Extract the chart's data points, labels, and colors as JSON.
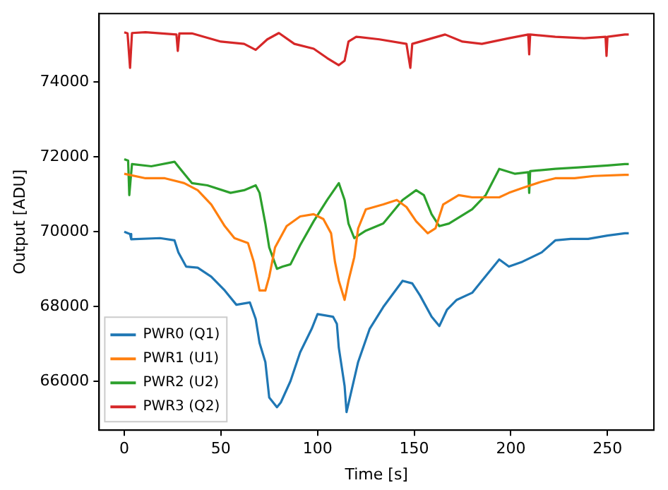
{
  "chart_data": {
    "type": "line",
    "xlabel": "Time [s]",
    "ylabel": "Output [ADU]",
    "xlim": [
      -13,
      274
    ],
    "ylim": [
      64700,
      75830
    ],
    "xticks": [
      0,
      50,
      100,
      150,
      200,
      250
    ],
    "yticks": [
      66000,
      68000,
      70000,
      72000,
      74000
    ],
    "grid": false,
    "legend": "bottom left",
    "marker": "none",
    "line_style": "solid",
    "series": [
      {
        "name": "PWR0 (Q1)",
        "color": "#1f77b4",
        "x": [
          0,
          3,
          3.6,
          18.5,
          26,
          28,
          32,
          38,
          45,
          52,
          58,
          65,
          68,
          70,
          73,
          75,
          79,
          81,
          86,
          91,
          97,
          100,
          108,
          110,
          111,
          114,
          115,
          117,
          121,
          127,
          134,
          144,
          149,
          153,
          159,
          163,
          167,
          172,
          180,
          185,
          194,
          199,
          206,
          216,
          223,
          231,
          240,
          250,
          259,
          261
        ],
        "values": [
          70000,
          69940,
          69800,
          69830,
          69770,
          69450,
          69070,
          69040,
          68800,
          68430,
          68050,
          68110,
          67670,
          67030,
          66520,
          65570,
          65310,
          65440,
          66010,
          66780,
          67410,
          67800,
          67730,
          67540,
          66900,
          65880,
          65180,
          65630,
          66520,
          67410,
          67990,
          68690,
          68620,
          68300,
          67730,
          67480,
          67920,
          68180,
          68370,
          68690,
          69260,
          69070,
          69200,
          69450,
          69770,
          69810,
          69810,
          69900,
          69960,
          69960
        ]
      },
      {
        "name": "PWR1 (U1)",
        "color": "#ff7f0e",
        "x": [
          0,
          11,
          21,
          31,
          38,
          45,
          52,
          57,
          64,
          67,
          70,
          73,
          75,
          78,
          84,
          91,
          98,
          103,
          107,
          109,
          111,
          114,
          116,
          119,
          121,
          125,
          134,
          141,
          146,
          151,
          157,
          161,
          165,
          173,
          180,
          187,
          194,
          199,
          206,
          216,
          223,
          233,
          243,
          259,
          261
        ],
        "values": [
          71550,
          71430,
          71430,
          71300,
          71110,
          70730,
          70150,
          69830,
          69700,
          69200,
          68430,
          68430,
          68800,
          69580,
          70150,
          70410,
          70470,
          70340,
          69960,
          69200,
          68690,
          68180,
          68690,
          69320,
          70090,
          70600,
          70730,
          70850,
          70660,
          70280,
          69960,
          70090,
          70730,
          70980,
          70920,
          70920,
          70920,
          71040,
          71170,
          71340,
          71430,
          71430,
          71490,
          71520,
          71520
        ]
      },
      {
        "name": "PWR2 (U2)",
        "color": "#2ca02c",
        "x": [
          0,
          2,
          2.6,
          4,
          14,
          26,
          31,
          35,
          43,
          55,
          62,
          68,
          70,
          73,
          75,
          79,
          82,
          86,
          91,
          98,
          105,
          111,
          114,
          116,
          119,
          125,
          134,
          144,
          151,
          155,
          159,
          163,
          168,
          180,
          187,
          194,
          202,
          209,
          209.5,
          210,
          223,
          235,
          250,
          259,
          261
        ],
        "values": [
          71940,
          71900,
          70980,
          71810,
          71750,
          71870,
          71550,
          71300,
          71240,
          71040,
          71110,
          71240,
          71040,
          70220,
          69580,
          69010,
          69070,
          69130,
          69640,
          70280,
          70850,
          71300,
          70850,
          70220,
          69830,
          70030,
          70220,
          70850,
          71110,
          70980,
          70470,
          70150,
          70220,
          70600,
          70980,
          71680,
          71550,
          71590,
          71040,
          71620,
          71680,
          71720,
          71770,
          71810,
          71810
        ]
      },
      {
        "name": "PWR3 (Q2)",
        "color": "#d62728",
        "x": [
          0,
          1.7,
          3,
          4,
          11,
          27,
          27.7,
          28.5,
          35,
          50,
          62,
          68,
          74,
          80,
          88,
          98,
          105,
          111,
          114,
          116,
          120,
          132,
          146,
          148,
          149,
          166,
          175,
          185,
          199,
          209,
          209.5,
          210,
          223,
          238,
          249,
          249.5,
          250,
          259,
          261
        ],
        "values": [
          75330,
          75300,
          74380,
          75310,
          75330,
          75270,
          74830,
          75300,
          75300,
          75080,
          75020,
          74860,
          75140,
          75310,
          75020,
          74890,
          74640,
          74450,
          74570,
          75080,
          75210,
          75140,
          75020,
          74380,
          75020,
          75270,
          75080,
          75020,
          75170,
          75270,
          74740,
          75270,
          75210,
          75170,
          75210,
          74700,
          75210,
          75270,
          75270
        ]
      }
    ]
  }
}
